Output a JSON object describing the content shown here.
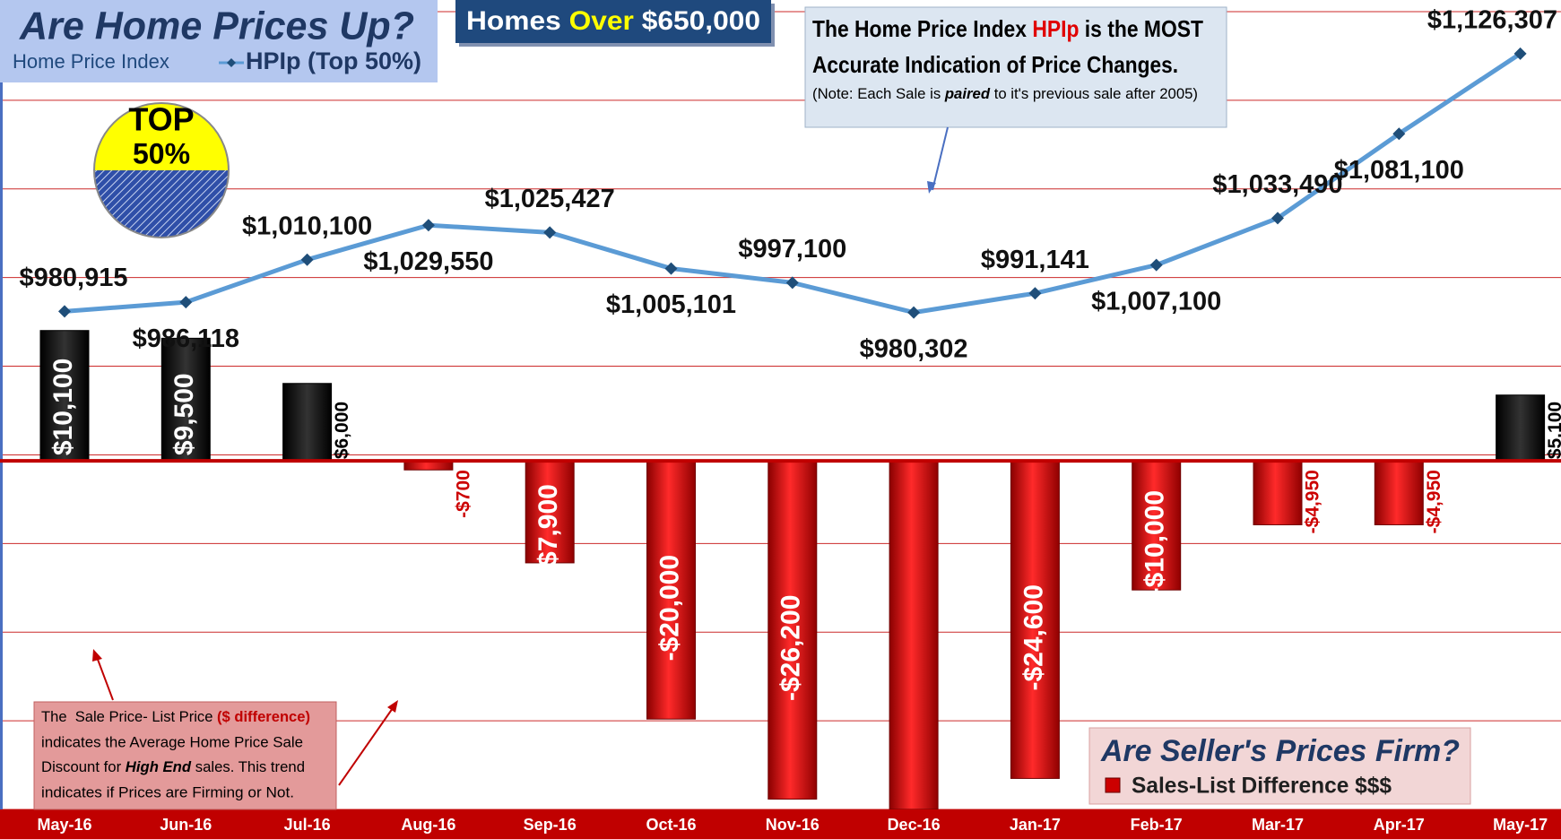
{
  "chart_data": {
    "type": "combo",
    "title": "Are Home Prices Up?",
    "legend_title": "Home Price Index",
    "banner": [
      "Homes",
      "Over",
      "$650,000"
    ],
    "badge": [
      "TOP",
      "50%"
    ],
    "note": [
      [
        "The Home Price Index ",
        "HPIp",
        " is the MOST"
      ],
      [
        "Accurate Indication of Price Changes."
      ],
      [
        "(Note: Each Sale is ",
        "paired",
        " to it's previous sale after 2005)"
      ]
    ],
    "explanation": [
      [
        "The  Sale Price- List Price ",
        "($ difference)"
      ],
      [
        "indicates the Average Home Price Sale"
      ],
      [
        "Discount for ",
        "High End",
        " sales. This trend"
      ],
      [
        "indicates if Prices are Firming or Not."
      ]
    ],
    "bar_legend_title": "Are Seller's Prices Firm?",
    "categories": [
      "May-16",
      "Jun-16",
      "Jul-16",
      "Aug-16",
      "Sep-16",
      "Oct-16",
      "Nov-16",
      "Dec-16",
      "Jan-17",
      "Feb-17",
      "Mar-17",
      "Apr-17",
      "May-17"
    ],
    "series": [
      {
        "name": "HPIp (Top 50%)",
        "type": "line",
        "color": "#5b9bd5",
        "marker_color": "#1f4e79",
        "values": [
          980915,
          986118,
          1010100,
          1029550,
          1025427,
          1005101,
          997100,
          980302,
          991141,
          1007100,
          1033490,
          1081100,
          1126307
        ],
        "value_labels": [
          "$980,915",
          "$986,118",
          "$1,010,100",
          "$1,029,550",
          "$1,025,427",
          "$1,005,101",
          "$997,100",
          "$980,302",
          "$991,141",
          "$1,007,100",
          "$1,033,490",
          "$1,081,100",
          "$1,126,307"
        ]
      },
      {
        "name": "Sales-List Difference $$$",
        "type": "bar",
        "axis": "y2",
        "color": "#cc0000",
        "positive_color": "#000000",
        "values": [
          10100,
          9500,
          6000,
          -700,
          -7900,
          -20000,
          -26200,
          -27000,
          -24600,
          -10000,
          -4950,
          -4950,
          5100
        ],
        "value_labels": [
          "$10,100",
          "$9,500",
          "$6,000",
          "-$700",
          "-$7,900",
          "-$20,000",
          "-$26,200",
          null,
          "-$24,600",
          "-$10,000",
          "-$4,950",
          "-$4,950",
          "$5,100"
        ]
      }
    ],
    "ylim": [
      700000,
      1150000
    ],
    "yticks": [
      700000,
      750000,
      800000,
      850000,
      900000,
      950000,
      1000000,
      1050000,
      1100000,
      1150000
    ],
    "y2lim": [
      -27000,
      34800
    ],
    "y2ticks": [
      0
    ],
    "grid": true
  }
}
